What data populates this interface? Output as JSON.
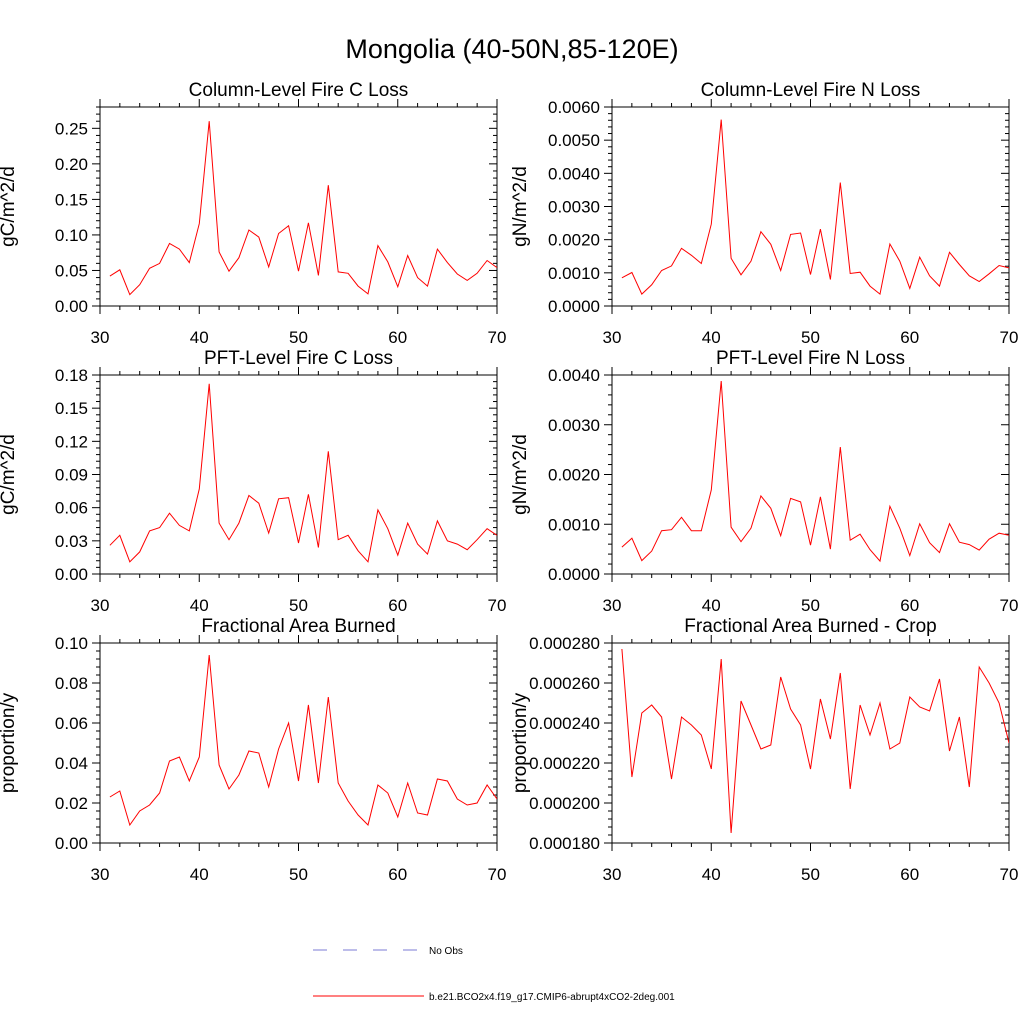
{
  "title": "Mongolia (40-50N,85-120E)",
  "colors": {
    "model_line": "#ff0000",
    "obs_line": "#7b7bd6",
    "axis": "#000000"
  },
  "legend": {
    "obs_label": "No Obs",
    "model_label": "b.e21.BCO2x4.f19_g17.CMIP6-abrupt4xCO2-2deg.001"
  },
  "chart_data": [
    {
      "type": "line",
      "title": "Column-Level Fire C Loss",
      "ylabel": "gC/m^2/d",
      "xlim": [
        30,
        70
      ],
      "ylim": [
        0,
        0.28
      ],
      "xticks": [
        "30",
        "40",
        "50",
        "60",
        "70"
      ],
      "yticks": [
        "0.00",
        "0.05",
        "0.10",
        "0.15",
        "0.20",
        "0.25"
      ],
      "x": [
        31,
        32,
        33,
        34,
        35,
        36,
        37,
        38,
        39,
        40,
        41,
        42,
        43,
        44,
        45,
        46,
        47,
        48,
        49,
        50,
        51,
        52,
        53,
        54,
        55,
        56,
        57,
        58,
        59,
        60,
        61,
        62,
        63,
        64,
        65,
        66,
        67,
        68,
        69,
        70
      ],
      "series": [
        {
          "name": "b.e21.BCO2x4.f19_g17.CMIP6-abrupt4xCO2-2deg.001",
          "values": [
            0.042,
            0.051,
            0.016,
            0.03,
            0.053,
            0.06,
            0.088,
            0.08,
            0.061,
            0.116,
            0.26,
            0.076,
            0.049,
            0.068,
            0.107,
            0.097,
            0.055,
            0.102,
            0.113,
            0.049,
            0.117,
            0.043,
            0.17,
            0.048,
            0.046,
            0.028,
            0.017,
            0.085,
            0.062,
            0.027,
            0.071,
            0.04,
            0.028,
            0.08,
            0.061,
            0.045,
            0.036,
            0.046,
            0.064,
            0.054
          ]
        }
      ]
    },
    {
      "type": "line",
      "title": "Column-Level Fire N Loss",
      "ylabel": "gN/m^2/d",
      "xlim": [
        30,
        70
      ],
      "ylim": [
        0,
        0.006
      ],
      "xticks": [
        "30",
        "40",
        "50",
        "60",
        "70"
      ],
      "yticks": [
        "0.0000",
        "0.0010",
        "0.0020",
        "0.0030",
        "0.0040",
        "0.0050",
        "0.0060"
      ],
      "x": [
        31,
        32,
        33,
        34,
        35,
        36,
        37,
        38,
        39,
        40,
        41,
        42,
        43,
        44,
        45,
        46,
        47,
        48,
        49,
        50,
        51,
        52,
        53,
        54,
        55,
        56,
        57,
        58,
        59,
        60,
        61,
        62,
        63,
        64,
        65,
        66,
        67,
        68,
        69,
        70
      ],
      "series": [
        {
          "name": "b.e21.BCO2x4.f19_g17.CMIP6-abrupt4xCO2-2deg.001",
          "values": [
            0.00085,
            0.00101,
            0.00036,
            0.00064,
            0.00107,
            0.00121,
            0.00174,
            0.00153,
            0.00128,
            0.00247,
            0.00562,
            0.00144,
            0.00094,
            0.00135,
            0.00224,
            0.00186,
            0.00107,
            0.00216,
            0.0022,
            0.00095,
            0.00232,
            0.0008,
            0.00372,
            0.00098,
            0.00102,
            0.0006,
            0.00036,
            0.00187,
            0.00135,
            0.00053,
            0.00147,
            0.00091,
            0.0006,
            0.00162,
            0.00125,
            0.00091,
            0.00074,
            0.00097,
            0.00122,
            0.00115
          ]
        }
      ]
    },
    {
      "type": "line",
      "title": "PFT-Level Fire C Loss",
      "ylabel": "gC/m^2/d",
      "xlim": [
        30,
        70
      ],
      "ylim": [
        0,
        0.18
      ],
      "xticks": [
        "30",
        "40",
        "50",
        "60",
        "70"
      ],
      "yticks": [
        "0.00",
        "0.03",
        "0.06",
        "0.09",
        "0.12",
        "0.15",
        "0.18"
      ],
      "x": [
        31,
        32,
        33,
        34,
        35,
        36,
        37,
        38,
        39,
        40,
        41,
        42,
        43,
        44,
        45,
        46,
        47,
        48,
        49,
        50,
        51,
        52,
        53,
        54,
        55,
        56,
        57,
        58,
        59,
        60,
        61,
        62,
        63,
        64,
        65,
        66,
        67,
        68,
        69,
        70
      ],
      "series": [
        {
          "name": "b.e21.BCO2x4.f19_g17.CMIP6-abrupt4xCO2-2deg.001",
          "values": [
            0.026,
            0.035,
            0.011,
            0.02,
            0.039,
            0.042,
            0.055,
            0.044,
            0.039,
            0.077,
            0.172,
            0.046,
            0.031,
            0.046,
            0.071,
            0.064,
            0.037,
            0.068,
            0.069,
            0.028,
            0.072,
            0.024,
            0.111,
            0.031,
            0.035,
            0.021,
            0.011,
            0.058,
            0.041,
            0.017,
            0.046,
            0.027,
            0.018,
            0.048,
            0.03,
            0.027,
            0.022,
            0.031,
            0.041,
            0.035
          ]
        }
      ]
    },
    {
      "type": "line",
      "title": "PFT-Level Fire N Loss",
      "ylabel": "gN/m^2/d",
      "xlim": [
        30,
        70
      ],
      "ylim": [
        0,
        0.004
      ],
      "xticks": [
        "30",
        "40",
        "50",
        "60",
        "70"
      ],
      "yticks": [
        "0.0000",
        "0.0010",
        "0.0020",
        "0.0030",
        "0.0040"
      ],
      "x": [
        31,
        32,
        33,
        34,
        35,
        36,
        37,
        38,
        39,
        40,
        41,
        42,
        43,
        44,
        45,
        46,
        47,
        48,
        49,
        50,
        51,
        52,
        53,
        54,
        55,
        56,
        57,
        58,
        59,
        60,
        61,
        62,
        63,
        64,
        65,
        66,
        67,
        68,
        69,
        70
      ],
      "series": [
        {
          "name": "b.e21.BCO2x4.f19_g17.CMIP6-abrupt4xCO2-2deg.001",
          "values": [
            0.00054,
            0.00072,
            0.00027,
            0.00046,
            0.00087,
            0.00089,
            0.00114,
            0.00087,
            0.00087,
            0.00169,
            0.00388,
            0.00094,
            0.00065,
            0.00092,
            0.00157,
            0.00132,
            0.00077,
            0.00152,
            0.00145,
            0.00058,
            0.00155,
            0.0005,
            0.00255,
            0.00068,
            0.0008,
            0.00049,
            0.00026,
            0.00136,
            0.00092,
            0.00037,
            0.00101,
            0.00063,
            0.00043,
            0.00101,
            0.00064,
            0.00059,
            0.00048,
            0.0007,
            0.00082,
            0.00078
          ]
        }
      ]
    },
    {
      "type": "line",
      "title": "Fractional Area Burned",
      "ylabel": "proportion/y",
      "xlim": [
        30,
        70
      ],
      "ylim": [
        0,
        0.1
      ],
      "xticks": [
        "30",
        "40",
        "50",
        "60",
        "70"
      ],
      "yticks": [
        "0.00",
        "0.02",
        "0.04",
        "0.06",
        "0.08",
        "0.10"
      ],
      "x": [
        31,
        32,
        33,
        34,
        35,
        36,
        37,
        38,
        39,
        40,
        41,
        42,
        43,
        44,
        45,
        46,
        47,
        48,
        49,
        50,
        51,
        52,
        53,
        54,
        55,
        56,
        57,
        58,
        59,
        60,
        61,
        62,
        63,
        64,
        65,
        66,
        67,
        68,
        69,
        70
      ],
      "series": [
        {
          "name": "b.e21.BCO2x4.f19_g17.CMIP6-abrupt4xCO2-2deg.001",
          "values": [
            0.023,
            0.026,
            0.009,
            0.016,
            0.019,
            0.025,
            0.041,
            0.043,
            0.031,
            0.043,
            0.094,
            0.039,
            0.027,
            0.034,
            0.046,
            0.045,
            0.028,
            0.047,
            0.06,
            0.031,
            0.069,
            0.03,
            0.073,
            0.03,
            0.021,
            0.014,
            0.009,
            0.029,
            0.025,
            0.013,
            0.03,
            0.015,
            0.014,
            0.032,
            0.031,
            0.022,
            0.019,
            0.02,
            0.029,
            0.022
          ]
        }
      ]
    },
    {
      "type": "line",
      "title": "Fractional Area Burned - Crop",
      "ylabel": "proportion/y",
      "xlim": [
        30,
        70
      ],
      "ylim": [
        0.00018,
        0.00028
      ],
      "xticks": [
        "30",
        "40",
        "50",
        "60",
        "70"
      ],
      "yticks": [
        "0.000180",
        "0.000200",
        "0.000220",
        "0.000240",
        "0.000260",
        "0.000280"
      ],
      "x": [
        31,
        32,
        33,
        34,
        35,
        36,
        37,
        38,
        39,
        40,
        41,
        42,
        43,
        44,
        45,
        46,
        47,
        48,
        49,
        50,
        51,
        52,
        53,
        54,
        55,
        56,
        57,
        58,
        59,
        60,
        61,
        62,
        63,
        64,
        65,
        66,
        67,
        68,
        69,
        70
      ],
      "series": [
        {
          "name": "b.e21.BCO2x4.f19_g17.CMIP6-abrupt4xCO2-2deg.001",
          "values": [
            0.000277,
            0.000213,
            0.000245,
            0.000249,
            0.000243,
            0.000212,
            0.000243,
            0.000239,
            0.000234,
            0.000217,
            0.000272,
            0.000185,
            0.000251,
            0.000239,
            0.000227,
            0.000229,
            0.000263,
            0.000247,
            0.000239,
            0.000217,
            0.000252,
            0.000232,
            0.000265,
            0.000207,
            0.000249,
            0.000234,
            0.00025,
            0.000227,
            0.00023,
            0.000253,
            0.000248,
            0.000246,
            0.000262,
            0.000226,
            0.000243,
            0.000208,
            0.000268,
            0.00026,
            0.00025,
            0.00023
          ]
        }
      ]
    }
  ]
}
